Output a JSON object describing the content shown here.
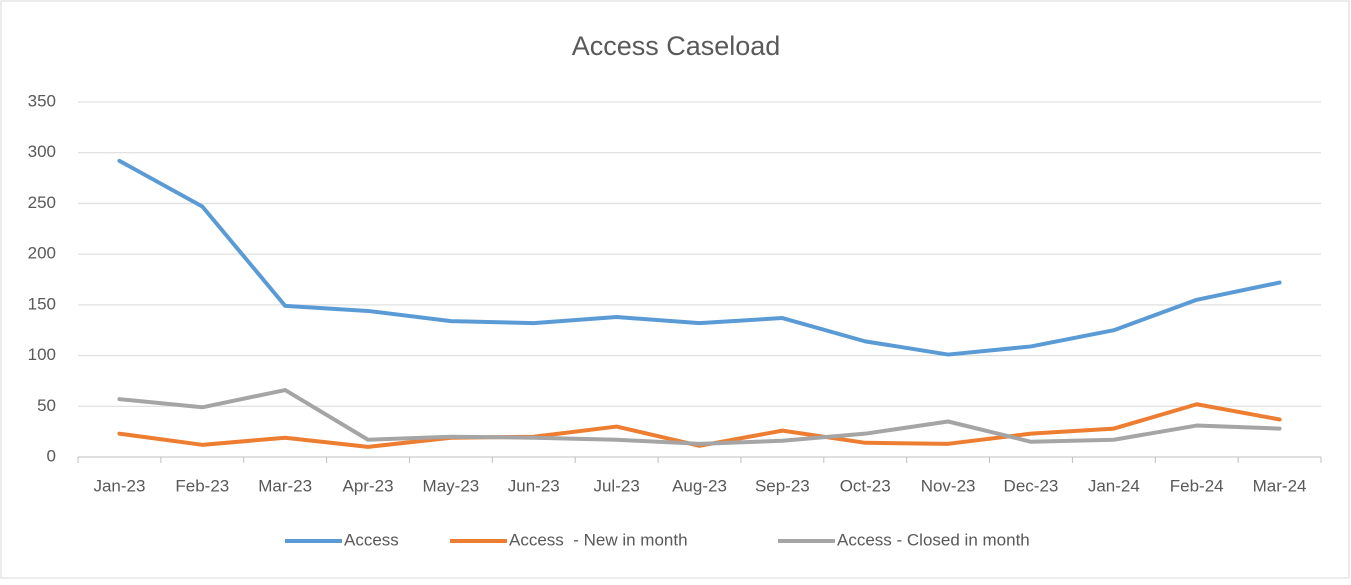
{
  "chart_data": {
    "type": "line",
    "title": "Access Caseload",
    "categories": [
      "Jan-23",
      "Feb-23",
      "Mar-23",
      "Apr-23",
      "May-23",
      "Jun-23",
      "Jul-23",
      "Aug-23",
      "Sep-23",
      "Oct-23",
      "Nov-23",
      "Dec-23",
      "Jan-24",
      "Feb-24",
      "Mar-24"
    ],
    "series": [
      {
        "name": "Access",
        "color": "#5b9bd5",
        "values": [
          292,
          247,
          149,
          144,
          134,
          132,
          138,
          132,
          137,
          114,
          101,
          109,
          125,
          155,
          172
        ]
      },
      {
        "name": "Access  - New in month",
        "color": "#ed7d31",
        "values": [
          23,
          12,
          19,
          10,
          19,
          20,
          30,
          11,
          26,
          14,
          13,
          23,
          28,
          52,
          37
        ]
      },
      {
        "name": "Access - Closed in month",
        "color": "#a5a5a5",
        "values": [
          57,
          49,
          66,
          17,
          20,
          19,
          17,
          13,
          16,
          23,
          35,
          15,
          17,
          31,
          28
        ]
      }
    ],
    "ylim": [
      0,
      350
    ],
    "yticks": [
      0,
      50,
      100,
      150,
      200,
      250,
      300,
      350
    ],
    "grid": true,
    "legend": "bottom"
  }
}
